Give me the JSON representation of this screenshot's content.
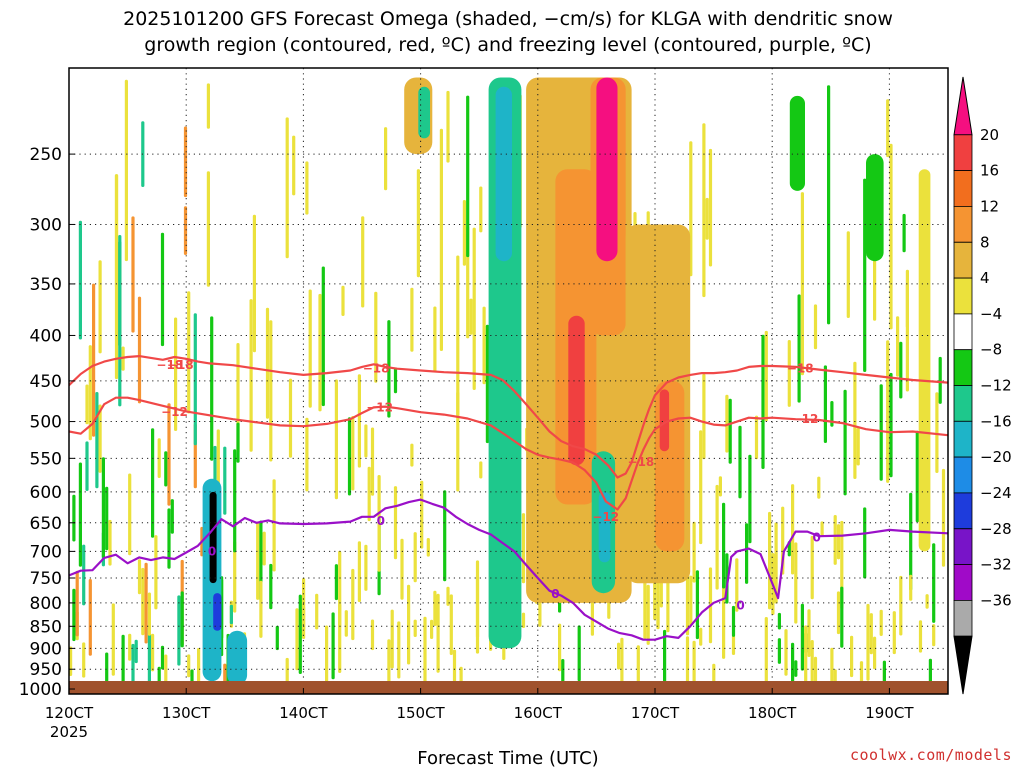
{
  "chart_data": {
    "type": "heatmap",
    "title_line1": "2025101200 GFS Forecast Omega (shaded, −cm/s) for KLGA with dendritic snow",
    "title_line2": "growth region (contoured, red, ºC) and freezing level (contoured, purple, ºC)",
    "xlabel": "Forecast Time (UTC)",
    "x_ticks": [
      {
        "value": 120,
        "label": "120CT"
      },
      {
        "value": 130,
        "label": "130CT"
      },
      {
        "value": 140,
        "label": "140CT"
      },
      {
        "value": 150,
        "label": "150CT"
      },
      {
        "value": 160,
        "label": "160CT"
      },
      {
        "value": 170,
        "label": "170CT"
      },
      {
        "value": 180,
        "label": "180CT"
      },
      {
        "value": 190,
        "label": "190CT"
      }
    ],
    "x_year": "2025",
    "xlim": [
      120,
      195
    ],
    "y_ticks": [
      250,
      300,
      350,
      400,
      450,
      500,
      550,
      600,
      650,
      700,
      750,
      800,
      850,
      900,
      950,
      1000
    ],
    "ylim": [
      200,
      1013
    ],
    "y_axis": "pressure (hPa), log scale, inverted",
    "colorbar": {
      "labels": [
        "20",
        "16",
        "12",
        "8",
        "4",
        "−4",
        "−8",
        "−12",
        "−16",
        "−20",
        "−24",
        "−28",
        "−32",
        "−36"
      ],
      "colors": [
        "#f50f80",
        "#f04040",
        "#f26e1e",
        "#f59432",
        "#e6b43c",
        "#ebe13c",
        "#ffffff",
        "#14c814",
        "#1ec88c",
        "#1eb4c8",
        "#1e8ce6",
        "#1e3cdc",
        "#7814c8",
        "#a00ac8",
        "#aaaaaa",
        "#000000"
      ],
      "bin_edges": [
        null,
        20,
        16,
        12,
        8,
        4,
        -4,
        -8,
        -12,
        -16,
        -20,
        -24,
        -28,
        -32,
        -36,
        null
      ]
    },
    "omega_features": [
      {
        "t0": 155.8,
        "t1": 158.6,
        "p0": 205,
        "p1": 900,
        "val": -9
      },
      {
        "t0": 156.4,
        "t1": 157.8,
        "p0": 210,
        "p1": 330,
        "val": -14
      },
      {
        "t0": 159.0,
        "t1": 168.0,
        "p0": 205,
        "p1": 800,
        "val": 6
      },
      {
        "t0": 161.5,
        "t1": 165.0,
        "p0": 260,
        "p1": 620,
        "val": 10
      },
      {
        "t0": 162.6,
        "t1": 164.0,
        "p0": 380,
        "p1": 560,
        "val": 18
      },
      {
        "t0": 164.5,
        "t1": 167.5,
        "p0": 205,
        "p1": 400,
        "val": 9
      },
      {
        "t0": 165.0,
        "t1": 166.8,
        "p0": 205,
        "p1": 330,
        "val": 22
      },
      {
        "t0": 164.6,
        "t1": 166.6,
        "p0": 540,
        "p1": 780,
        "val": -10
      },
      {
        "t0": 165.2,
        "t1": 166.2,
        "p0": 600,
        "p1": 720,
        "val": -14
      },
      {
        "t0": 167.5,
        "t1": 173.0,
        "p0": 300,
        "p1": 760,
        "val": 6
      },
      {
        "t0": 170.0,
        "t1": 172.5,
        "p0": 450,
        "p1": 700,
        "val": 10
      },
      {
        "t0": 170.4,
        "t1": 171.2,
        "p0": 460,
        "p1": 540,
        "val": 18
      },
      {
        "t0": 131.4,
        "t1": 133.0,
        "p0": 580,
        "p1": 980,
        "val": -14
      },
      {
        "t0": 132.0,
        "t1": 132.6,
        "p0": 600,
        "p1": 760,
        "val": -38
      },
      {
        "t0": 132.3,
        "t1": 133.0,
        "p0": 780,
        "p1": 860,
        "val": -22
      },
      {
        "t0": 133.5,
        "t1": 135.2,
        "p0": 860,
        "p1": 990,
        "val": -12
      },
      {
        "t0": 148.6,
        "t1": 151.0,
        "p0": 205,
        "p1": 250,
        "val": 6
      },
      {
        "t0": 149.8,
        "t1": 150.8,
        "p0": 210,
        "p1": 240,
        "val": -10
      },
      {
        "t0": 181.5,
        "t1": 182.8,
        "p0": 215,
        "p1": 275,
        "val": -7
      },
      {
        "t0": 188.0,
        "t1": 189.5,
        "p0": 250,
        "p1": 330,
        "val": -7
      },
      {
        "t0": 192.5,
        "t1": 193.5,
        "p0": 260,
        "p1": 700,
        "val": 5
      }
    ],
    "contours": [
      {
        "name": "dgz-minus18",
        "color": "#f04848",
        "label": "−18",
        "label_at": [
          [
            129.5,
            432
          ],
          [
            128.6,
            432
          ],
          [
            146.2,
            436
          ],
          [
            182.4,
            436
          ],
          [
            168.8,
            555
          ]
        ],
        "label_values": [
          "−18"
        ],
        "points": [
          [
            120,
            455
          ],
          [
            121,
            442
          ],
          [
            122,
            433
          ],
          [
            123,
            428
          ],
          [
            124,
            425
          ],
          [
            125,
            423
          ],
          [
            126,
            422
          ],
          [
            127,
            424
          ],
          [
            128,
            426
          ],
          [
            129,
            423
          ],
          [
            130,
            425
          ],
          [
            131,
            428
          ],
          [
            132,
            430
          ],
          [
            134,
            432
          ],
          [
            136,
            436
          ],
          [
            138,
            440
          ],
          [
            140,
            443
          ],
          [
            142,
            441
          ],
          [
            144,
            438
          ],
          [
            145,
            434
          ],
          [
            146,
            431
          ],
          [
            147,
            434
          ],
          [
            148,
            436
          ],
          [
            150,
            438
          ],
          [
            152,
            440
          ],
          [
            154,
            441
          ],
          [
            156,
            443
          ],
          [
            157,
            449
          ],
          [
            158,
            462
          ],
          [
            159,
            478
          ],
          [
            160,
            495
          ],
          [
            161,
            513
          ],
          [
            162,
            526
          ],
          [
            163,
            533
          ],
          [
            164,
            537
          ],
          [
            165,
            545
          ],
          [
            166,
            560
          ],
          [
            166.8,
            578
          ],
          [
            167.5,
            572
          ],
          [
            168,
            556
          ],
          [
            168.5,
            530
          ],
          [
            169,
            505
          ],
          [
            169.5,
            484
          ],
          [
            170,
            467
          ],
          [
            171,
            452
          ],
          [
            172,
            446
          ],
          [
            173,
            443
          ],
          [
            174,
            441
          ],
          [
            175,
            441
          ],
          [
            176,
            440
          ],
          [
            177,
            438
          ],
          [
            178,
            434
          ],
          [
            179,
            433
          ],
          [
            180,
            433
          ],
          [
            182,
            434
          ],
          [
            184,
            437
          ],
          [
            186,
            440
          ],
          [
            188,
            443
          ],
          [
            190,
            446
          ],
          [
            192,
            449
          ],
          [
            195,
            452
          ]
        ]
      },
      {
        "name": "dgz-minus12",
        "color": "#f04848",
        "label": "−12",
        "label_at": [
          [
            129.0,
            488
          ],
          [
            146.5,
            482
          ],
          [
            182.8,
            497
          ],
          [
            165.8,
            640
          ]
        ],
        "label_values": [
          "−12"
        ],
        "points": [
          [
            120,
            513
          ],
          [
            121,
            516
          ],
          [
            122,
            503
          ],
          [
            123,
            478
          ],
          [
            124,
            470
          ],
          [
            125,
            470
          ],
          [
            126,
            473
          ],
          [
            128,
            480
          ],
          [
            130,
            487
          ],
          [
            132,
            492
          ],
          [
            134,
            497
          ],
          [
            136,
            501
          ],
          [
            138,
            505
          ],
          [
            140,
            506
          ],
          [
            142,
            503
          ],
          [
            144,
            497
          ],
          [
            145,
            489
          ],
          [
            146,
            482
          ],
          [
            147,
            481
          ],
          [
            148,
            483
          ],
          [
            150,
            488
          ],
          [
            152,
            491
          ],
          [
            154,
            496
          ],
          [
            156,
            505
          ],
          [
            157,
            515
          ],
          [
            158,
            526
          ],
          [
            159,
            537
          ],
          [
            160,
            545
          ],
          [
            161,
            549
          ],
          [
            162,
            552
          ],
          [
            163,
            556
          ],
          [
            164,
            567
          ],
          [
            165,
            586
          ],
          [
            165.8,
            615
          ],
          [
            166.8,
            628
          ],
          [
            167.5,
            610
          ],
          [
            168,
            583
          ],
          [
            168.5,
            558
          ],
          [
            169,
            538
          ],
          [
            169.5,
            522
          ],
          [
            170,
            510
          ],
          [
            171,
            500
          ],
          [
            172,
            496
          ],
          [
            173,
            495
          ],
          [
            174,
            500
          ],
          [
            175,
            504
          ],
          [
            176,
            505
          ],
          [
            177,
            500
          ],
          [
            178,
            495
          ],
          [
            179,
            496
          ],
          [
            180,
            495
          ],
          [
            182,
            497
          ],
          [
            184,
            498
          ],
          [
            186,
            502
          ],
          [
            188,
            510
          ],
          [
            190,
            514
          ],
          [
            192,
            513
          ],
          [
            195,
            518
          ]
        ]
      },
      {
        "name": "freezing-level-0",
        "color": "#9a10c8",
        "label": "0",
        "label_at": [
          [
            132.2,
            700
          ],
          [
            146.6,
            647
          ],
          [
            161.5,
            782
          ],
          [
            177.3,
            805
          ],
          [
            183.8,
            675
          ]
        ],
        "label_values": [
          "0"
        ],
        "points": [
          [
            120,
            745
          ],
          [
            121,
            736
          ],
          [
            122,
            735
          ],
          [
            123,
            712
          ],
          [
            124,
            706
          ],
          [
            125,
            722
          ],
          [
            126,
            711
          ],
          [
            127,
            716
          ],
          [
            128,
            711
          ],
          [
            129,
            714
          ],
          [
            130,
            702
          ],
          [
            131,
            690
          ],
          [
            132,
            668
          ],
          [
            133,
            644
          ],
          [
            134,
            656
          ],
          [
            135,
            642
          ],
          [
            136,
            650
          ],
          [
            137,
            646
          ],
          [
            138,
            651
          ],
          [
            140,
            652
          ],
          [
            142,
            651
          ],
          [
            144,
            648
          ],
          [
            145,
            640
          ],
          [
            146,
            640
          ],
          [
            147,
            626
          ],
          [
            148,
            622
          ],
          [
            149,
            616
          ],
          [
            150,
            612
          ],
          [
            151,
            619
          ],
          [
            152,
            625
          ],
          [
            153,
            640
          ],
          [
            154,
            652
          ],
          [
            155,
            662
          ],
          [
            156,
            670
          ],
          [
            157,
            685
          ],
          [
            158,
            700
          ],
          [
            159,
            725
          ],
          [
            160,
            750
          ],
          [
            161,
            775
          ],
          [
            162,
            785
          ],
          [
            163,
            800
          ],
          [
            164,
            825
          ],
          [
            165,
            840
          ],
          [
            166,
            855
          ],
          [
            167,
            865
          ],
          [
            168,
            870
          ],
          [
            169,
            880
          ],
          [
            170,
            880
          ],
          [
            171,
            872
          ],
          [
            172,
            876
          ],
          [
            173,
            850
          ],
          [
            174,
            820
          ],
          [
            175,
            800
          ],
          [
            176,
            790
          ],
          [
            176.5,
            710
          ],
          [
            177,
            700
          ],
          [
            178,
            695
          ],
          [
            179,
            705
          ],
          [
            180,
            760
          ],
          [
            180.5,
            790
          ],
          [
            181,
            700
          ],
          [
            182,
            665
          ],
          [
            183,
            665
          ],
          [
            184,
            673
          ],
          [
            186,
            672
          ],
          [
            188,
            668
          ],
          [
            190,
            662
          ],
          [
            192,
            665
          ],
          [
            195,
            668
          ]
        ]
      }
    ],
    "ground_level": "1000 hPa surface (terrain)",
    "credit": "coolwx.com/models"
  }
}
